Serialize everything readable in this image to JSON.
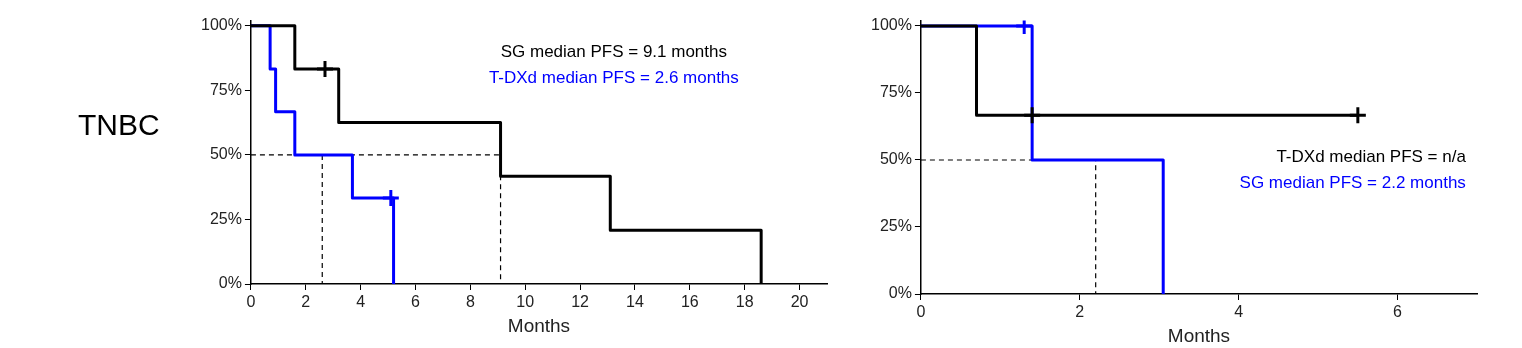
{
  "chart_data": [
    {
      "type": "step",
      "ylabel": "TNBC",
      "xlabel": "Months",
      "xlim": [
        0,
        21
      ],
      "xticks": [
        0,
        2,
        4,
        6,
        8,
        10,
        12,
        14,
        16,
        18,
        20
      ],
      "ylim": [
        0,
        102
      ],
      "yticks": [
        {
          "value": 0,
          "label": "0%"
        },
        {
          "value": 25,
          "label": "25%"
        },
        {
          "value": 50,
          "label": "50%"
        },
        {
          "value": 75,
          "label": "75%"
        },
        {
          "value": 100,
          "label": "100%"
        }
      ],
      "grid": false,
      "legend": false,
      "marker": "none",
      "annotations": [
        "SG median PFS = 9.1 months",
        "T-DXd median PFS = 2.6 months"
      ],
      "series": [
        {
          "color": "#000000",
          "x": [
            0,
            1.6,
            3.2,
            9.1,
            13.1,
            18.6
          ],
          "values": [
            100,
            83.3,
            62.5,
            41.7,
            20.8,
            0
          ]
        },
        {
          "color": "#0000ff",
          "x": [
            0,
            0.7,
            0.9,
            1.6,
            3.7,
            5.2
          ],
          "values": [
            100,
            83.3,
            66.7,
            50,
            33.3,
            0
          ]
        },
        {
          "type": "scatter",
          "marker": "cross",
          "color": "#000000",
          "x": [
            2.7
          ],
          "values": [
            83.3
          ]
        },
        {
          "type": "scatter",
          "marker": "cross",
          "color": "#0000ff",
          "x": [
            5.1
          ],
          "values": [
            33.3
          ]
        },
        {
          "type": "line",
          "line_style": "dashed",
          "color": "#000000",
          "x": [
            0,
            9.1,
            9.1
          ],
          "values": [
            50,
            50,
            0
          ]
        },
        {
          "type": "line",
          "line_style": "dashed",
          "color": "#000000",
          "x": [
            2.6,
            2.6
          ],
          "values": [
            50,
            0
          ]
        }
      ]
    },
    {
      "type": "step",
      "xlabel": "Months",
      "xlim": [
        0,
        7
      ],
      "xticks": [
        0,
        2,
        4,
        6
      ],
      "ylim": [
        0,
        102
      ],
      "yticks": [
        {
          "value": 0,
          "label": "0%"
        },
        {
          "value": 25,
          "label": "25%"
        },
        {
          "value": 50,
          "label": "50%"
        },
        {
          "value": 75,
          "label": "75%"
        },
        {
          "value": 100,
          "label": "100%"
        }
      ],
      "grid": false,
      "legend": false,
      "marker": "none",
      "annotations": [
        "T-DXd median PFS = n/a",
        "SG median PFS = 2.2 months"
      ],
      "series": [
        {
          "color": "#000000",
          "x": [
            0,
            0.7,
            5.5
          ],
          "values": [
            100,
            66.7,
            66.7
          ]
        },
        {
          "color": "#0000ff",
          "x": [
            0,
            1.4,
            3.05
          ],
          "values": [
            100,
            50,
            0
          ]
        },
        {
          "type": "scatter",
          "marker": "cross",
          "color": "#000000",
          "x": [
            1.4,
            5.5
          ],
          "values": [
            66.7,
            66.7
          ]
        },
        {
          "type": "scatter",
          "marker": "cross",
          "color": "#0000ff",
          "x": [
            1.3
          ],
          "values": [
            100
          ]
        },
        {
          "type": "line",
          "line_style": "dashed",
          "color": "#000000",
          "x": [
            0,
            2.2,
            2.2
          ],
          "values": [
            50,
            50,
            0
          ]
        }
      ]
    }
  ]
}
